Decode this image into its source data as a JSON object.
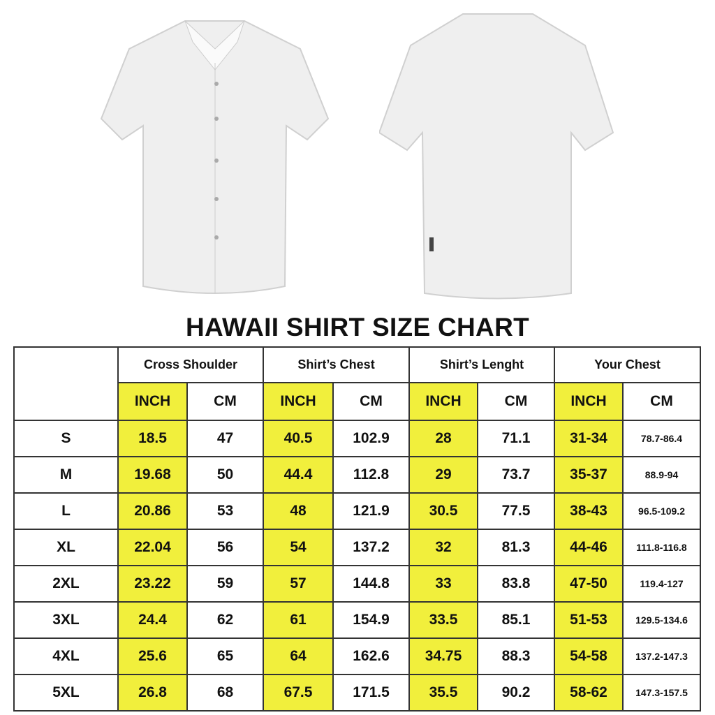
{
  "title": "HAWAII SHIRT SIZE CHART",
  "colors": {
    "highlight": "#f1ef3c",
    "border": "#333333"
  },
  "groups": [
    "Cross Shoulder",
    "Shirt’s Chest",
    "Shirt’s Lenght",
    "Your Chest"
  ],
  "units": {
    "inch": "INCH",
    "cm": "CM"
  },
  "rows": [
    {
      "size": "S",
      "v": [
        "18.5",
        "47",
        "40.5",
        "102.9",
        "28",
        "71.1",
        "31-34",
        "78.7-86.4"
      ]
    },
    {
      "size": "M",
      "v": [
        "19.68",
        "50",
        "44.4",
        "112.8",
        "29",
        "73.7",
        "35-37",
        "88.9-94"
      ]
    },
    {
      "size": "L",
      "v": [
        "20.86",
        "53",
        "48",
        "121.9",
        "30.5",
        "77.5",
        "38-43",
        "96.5-109.2"
      ]
    },
    {
      "size": "XL",
      "v": [
        "22.04",
        "56",
        "54",
        "137.2",
        "32",
        "81.3",
        "44-46",
        "111.8-116.8"
      ]
    },
    {
      "size": "2XL",
      "v": [
        "23.22",
        "59",
        "57",
        "144.8",
        "33",
        "83.8",
        "47-50",
        "119.4-127"
      ]
    },
    {
      "size": "3XL",
      "v": [
        "24.4",
        "62",
        "61",
        "154.9",
        "33.5",
        "85.1",
        "51-53",
        "129.5-134.6"
      ]
    },
    {
      "size": "4XL",
      "v": [
        "25.6",
        "65",
        "64",
        "162.6",
        "34.75",
        "88.3",
        "54-58",
        "137.2-147.3"
      ]
    },
    {
      "size": "5XL",
      "v": [
        "26.8",
        "68",
        "67.5",
        "171.5",
        "35.5",
        "90.2",
        "58-62",
        "147.3-157.5"
      ]
    }
  ]
}
